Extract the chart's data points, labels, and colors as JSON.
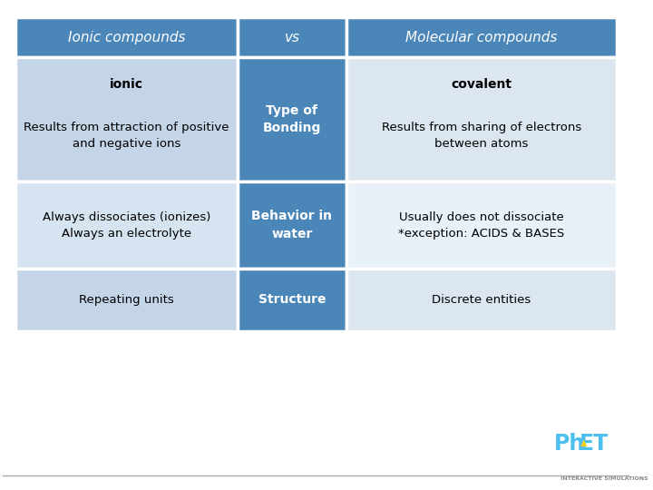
{
  "header_bg": "#4a86b8",
  "header_text_color": "#ffffff",
  "middle_col_bg": "#4a86b8",
  "middle_col_text_color": "#ffffff",
  "left_col_bg": "#c5d5e8",
  "right_col_bg": "#dce6f0",
  "alt_row_left_bg": "#d6e3f0",
  "alt_row_right_bg": "#e8f0f8",
  "border_color": "#ffffff",
  "header_col1": "Ionic compounds",
  "header_col2": "vs",
  "header_col3": "Molecular compounds",
  "rows": [
    {
      "left_bold": "ionic",
      "left_body": "Results from attraction of positive\nand negative ions",
      "center": "Type of\nBonding",
      "right_bold": "covalent",
      "right_body": "Results from sharing of electrons\nbetween atoms"
    },
    {
      "left_bold": "",
      "left_body": "Always dissociates (ionizes)\nAlways an electrolyte",
      "center": "Behavior in\nwater",
      "right_bold": "",
      "right_body": "Usually does not dissociate\n*exception: ACIDS & BASES"
    },
    {
      "left_bold": "",
      "left_body": "Repeating units",
      "center": "Structure",
      "right_bold": "",
      "right_body": "Discrete entities"
    }
  ],
  "col_ratios": [
    0.37,
    0.18,
    0.45
  ],
  "fig_width": 7.2,
  "fig_height": 5.4,
  "background_color": "#ffffff",
  "phet_blue": "#4dbfef",
  "phet_yellow": "#f5d020",
  "bottom_line_color": "#aaaaaa",
  "logo_text_color": "#888888"
}
